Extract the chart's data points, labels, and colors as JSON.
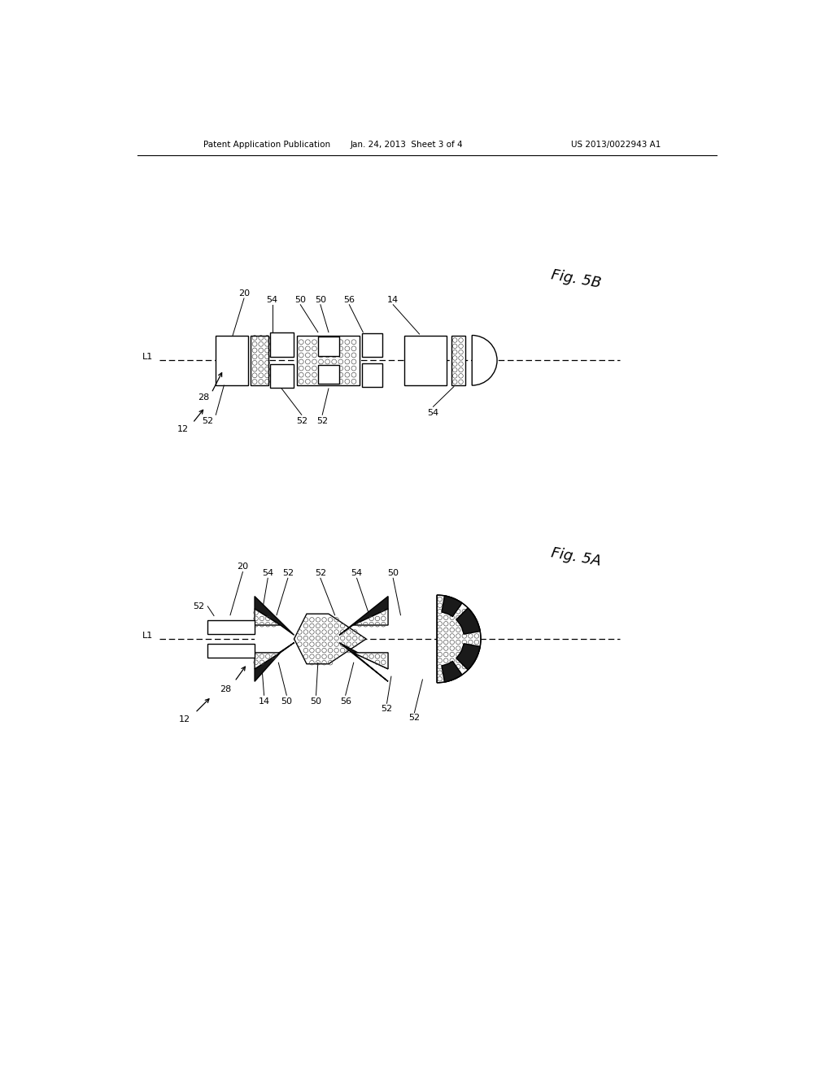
{
  "header_left": "Patent Application Publication",
  "header_center": "Jan. 24, 2013  Sheet 3 of 4",
  "header_right": "US 2013/0022943 A1",
  "fig5b_label": "Fig. 5B",
  "fig5a_label": "Fig. 5A",
  "background_color": "#ffffff",
  "line_color": "#000000",
  "lw": 1.0
}
